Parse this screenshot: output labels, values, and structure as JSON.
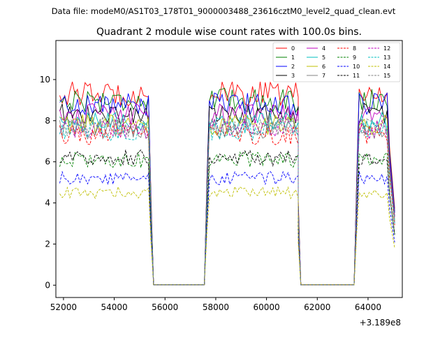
{
  "suptitle": "Data file: modeM0/AS1T03_178T01_9000003488_23616cztM0_level2_quad_clean.evt",
  "chart_data": {
    "type": "line",
    "title": "Quadrant 2 module wise count rates with 100.0s bins.",
    "xlabel": "",
    "ylabel": "",
    "x_offset_label": "+3.189e8",
    "xlim": [
      51700,
      65350
    ],
    "ylim": [
      -0.6,
      11.9
    ],
    "xticks": [
      52000,
      54000,
      56000,
      58000,
      60000,
      62000,
      64000
    ],
    "xtick_labels": [
      "52000",
      "54000",
      "56000",
      "58000",
      "60000",
      "62000",
      "64000"
    ],
    "yticks": [
      0,
      2,
      4,
      6,
      8,
      10
    ],
    "ytick_labels": [
      "0",
      "2",
      "4",
      "6",
      "8",
      "10"
    ],
    "legend_position": "upper right",
    "segments": [
      {
        "start": 51850,
        "end": 55350,
        "ramp_down_to": 55550
      },
      {
        "start": 57750,
        "end": 61250,
        "ramp_up_from": 57550,
        "ramp_down_to": 61350
      },
      {
        "start": 63650,
        "end": 65050,
        "ramp_up_from": 63450
      }
    ],
    "gap_value": 0.02,
    "series": [
      {
        "name": "0",
        "color": "#ff0000",
        "dash": "solid",
        "level": 9.3
      },
      {
        "name": "1",
        "color": "#008000",
        "dash": "solid",
        "level": 9.0
      },
      {
        "name": "2",
        "color": "#0000ff",
        "dash": "solid",
        "level": 8.8
      },
      {
        "name": "3",
        "color": "#000000",
        "dash": "solid",
        "level": 8.3
      },
      {
        "name": "4",
        "color": "#bf00bf",
        "dash": "solid",
        "level": 8.3
      },
      {
        "name": "5",
        "color": "#00bfbf",
        "dash": "solid",
        "level": 7.9
      },
      {
        "name": "6",
        "color": "#bfbf00",
        "dash": "solid",
        "level": 7.8
      },
      {
        "name": "7",
        "color": "#808080",
        "dash": "solid",
        "level": 7.6
      },
      {
        "name": "8",
        "color": "#ff0000",
        "dash": "dashed",
        "level": 7.3
      },
      {
        "name": "9",
        "color": "#008000",
        "dash": "dashed",
        "level": 6.1
      },
      {
        "name": "10",
        "color": "#0000ff",
        "dash": "dashed",
        "level": 5.2
      },
      {
        "name": "11",
        "color": "#000000",
        "dash": "dashed",
        "level": 6.2
      },
      {
        "name": "12",
        "color": "#bf00bf",
        "dash": "dashed",
        "level": 7.6
      },
      {
        "name": "13",
        "color": "#00bfbf",
        "dash": "dashed",
        "level": 7.5
      },
      {
        "name": "14",
        "color": "#bfbf00",
        "dash": "dashed",
        "level": 4.5
      },
      {
        "name": "15",
        "color": "#808080",
        "dash": "dashed",
        "level": 7.7
      }
    ]
  }
}
